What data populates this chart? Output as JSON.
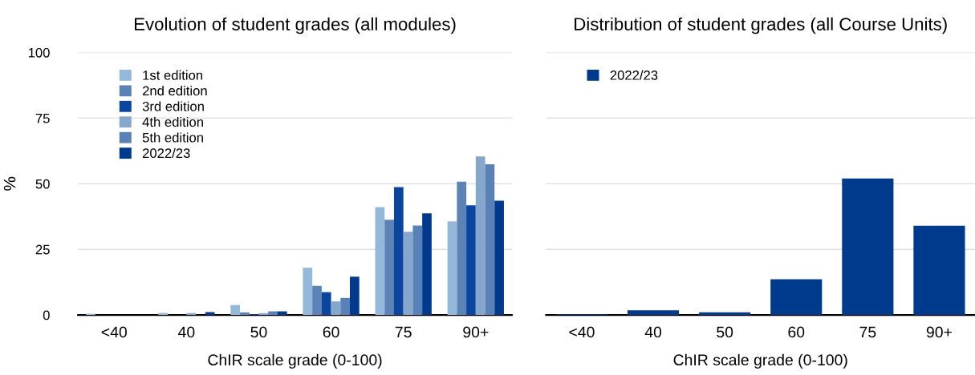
{
  "chart_data": [
    {
      "type": "bar",
      "title": "Evolution of student grades (all modules)",
      "xlabel": "ChIR scale grade (0-100)",
      "ylabel": "%",
      "categories": [
        "<40",
        "40",
        "50",
        "60",
        "75",
        "90+"
      ],
      "series": [
        {
          "name": "1st edition",
          "color": "#94b8d9",
          "values": [
            0.5,
            0.8,
            3.8,
            18.0,
            41.1,
            35.7
          ]
        },
        {
          "name": "2nd edition",
          "color": "#5b83b5",
          "values": [
            0,
            0,
            1.0,
            11.1,
            36.3,
            50.8
          ]
        },
        {
          "name": "3rd edition",
          "color": "#0a46a0",
          "values": [
            0,
            0,
            0.3,
            8.7,
            48.7,
            41.8
          ]
        },
        {
          "name": "4th edition",
          "color": "#85a7cb",
          "values": [
            0,
            0.7,
            0.7,
            5.2,
            31.7,
            60.4
          ]
        },
        {
          "name": "5th edition",
          "color": "#5a80b8",
          "values": [
            0,
            0,
            1.4,
            6.5,
            34.1,
            57.4
          ]
        },
        {
          "name": "2022/23",
          "color": "#003a8c",
          "values": [
            0,
            1.1,
            1.4,
            14.6,
            38.7,
            43.5
          ]
        }
      ],
      "ylim": [
        0,
        100
      ],
      "yticks": [
        0,
        25,
        50,
        75,
        100
      ],
      "grid": "y",
      "legend": "top left"
    },
    {
      "type": "bar",
      "title": "Distribution of student grades (all Course Units)",
      "xlabel": "ChIR scale grade (0-100)",
      "categories": [
        "<40",
        "40",
        "50",
        "60",
        "75",
        "90+"
      ],
      "series": [
        {
          "name": "2022/23",
          "color": "#003a8c",
          "values": [
            0.3,
            1.8,
            1.0,
            13.6,
            52.0,
            34.0
          ]
        }
      ],
      "ylim": [
        0,
        100
      ],
      "yticks": [
        0,
        25,
        50,
        75,
        100
      ],
      "grid": "y",
      "legend": "top left",
      "tick_labels": "x"
    }
  ]
}
